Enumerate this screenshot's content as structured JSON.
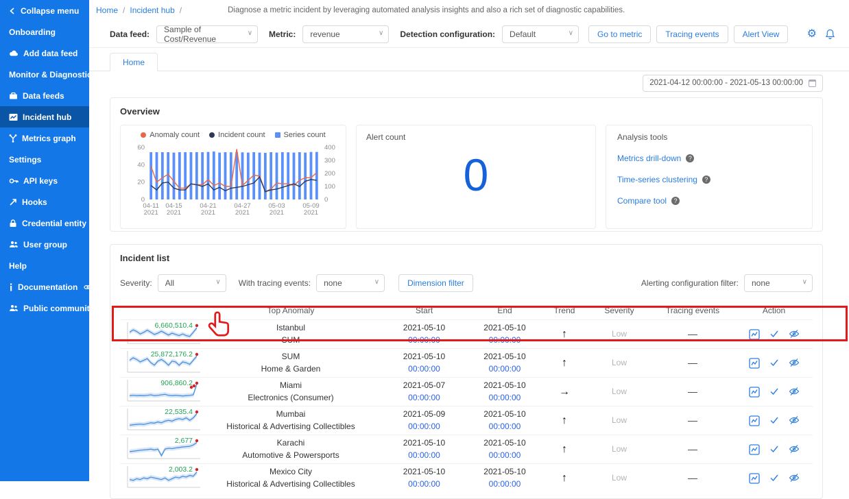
{
  "colors": {
    "sidebar": "#1377e8",
    "sidebar_selected": "#0a55a5",
    "accent": "#2a7de1",
    "bar_series": "#5b8ff9",
    "anomaly_line": "#e8684a",
    "incident_line": "#2b3a55",
    "spark_line": "#4a90d9",
    "spark_band": "#d9e6f8",
    "value_green": "#21a352",
    "anomaly_dot": "#e01f1f",
    "alert_number_blue": "#1561d9",
    "highlight_red": "#e31a1a"
  },
  "sidebar": {
    "collapse_label": "Collapse menu",
    "groups": [
      {
        "label": "Onboarding",
        "items": [
          {
            "icon": "cloud-upload",
            "label": "Add data feed"
          }
        ]
      },
      {
        "label": "Monitor & Diagnostic",
        "items": [
          {
            "icon": "database",
            "label": "Data feeds"
          },
          {
            "icon": "picture-chart",
            "label": "Incident hub",
            "selected": true
          },
          {
            "icon": "branch",
            "label": "Metrics graph"
          }
        ]
      },
      {
        "label": "Settings",
        "items": [
          {
            "icon": "key",
            "label": "API keys"
          },
          {
            "icon": "hook-arrow",
            "label": "Hooks"
          },
          {
            "icon": "lock",
            "label": "Credential entity"
          },
          {
            "icon": "team",
            "label": "User group"
          }
        ]
      },
      {
        "label": "Help",
        "items": [
          {
            "icon": "info",
            "label": "Documentation",
            "external": true
          },
          {
            "icon": "team",
            "label": "Public community",
            "external": true
          }
        ]
      }
    ]
  },
  "breadcrumb": {
    "home": "Home",
    "current": "Incident hub",
    "description": "Diagnose a metric incident by leveraging automated analysis insights and also a rich set of diagnostic capabilities."
  },
  "toolbar": {
    "data_feed_label": "Data feed:",
    "data_feed_value": "Sample of Cost/Revenue",
    "metric_label": "Metric:",
    "metric_value": "revenue",
    "detection_label": "Detection configuration:",
    "detection_value": "Default",
    "go_to_metric": "Go to metric",
    "tracing_events": "Tracing events",
    "alert_view": "Alert View"
  },
  "tabs": {
    "active": "Home"
  },
  "date_range": "2021-04-12 00:00:00 - 2021-05-13 00:00:00",
  "overview": {
    "title": "Overview",
    "alert_count_label": "Alert count",
    "alert_count_value": "0",
    "analysis_tools": {
      "title": "Analysis tools",
      "links": [
        "Metrics drill-down",
        "Time-series clustering",
        "Compare tool"
      ]
    }
  },
  "chart_data": {
    "type": "bar",
    "x": [
      "04-11",
      "04-12",
      "04-13",
      "04-14",
      "04-15",
      "04-16",
      "04-17",
      "04-18",
      "04-19",
      "04-20",
      "04-21",
      "04-22",
      "04-23",
      "04-24",
      "04-25",
      "04-26",
      "04-27",
      "04-28",
      "04-29",
      "04-30",
      "05-01",
      "05-02",
      "05-03",
      "05-04",
      "05-05",
      "05-06",
      "05-07",
      "05-08",
      "05-09",
      "05-10"
    ],
    "series": [
      {
        "name": "Anomaly count",
        "type": "line",
        "axis": "left",
        "color": "#e8684a",
        "values": [
          38,
          20,
          25,
          29,
          21,
          13,
          13,
          18,
          17,
          17,
          23,
          16,
          19,
          15,
          15,
          58,
          16,
          22,
          28,
          27,
          9,
          12,
          19,
          18,
          18,
          16,
          22,
          25,
          25,
          31
        ]
      },
      {
        "name": "Incident count",
        "type": "line",
        "axis": "left",
        "color": "#2b3a55",
        "values": [
          16,
          11,
          19,
          20,
          13,
          11,
          11,
          18,
          17,
          15,
          18,
          11,
          14,
          10,
          13,
          14,
          15,
          17,
          19,
          26,
          9,
          11,
          12,
          14,
          16,
          18,
          15,
          21,
          23,
          22
        ]
      },
      {
        "name": "Series count",
        "type": "bar",
        "axis": "right",
        "color": "#5b8ff9",
        "values": [
          363,
          363,
          363,
          363,
          360,
          363,
          363,
          363,
          363,
          363,
          365,
          368,
          360,
          363,
          362,
          363,
          362,
          360,
          363,
          360,
          358,
          363,
          360,
          363,
          362,
          360,
          363,
          360,
          365,
          365
        ]
      }
    ],
    "left_axis": {
      "ticks": [
        0,
        20,
        40,
        60
      ],
      "max": 60
    },
    "right_axis": {
      "ticks": [
        0,
        100,
        200,
        300,
        400
      ],
      "max": 400
    },
    "x_tick_indices": [
      0,
      4,
      10,
      16,
      22,
      28
    ],
    "x_tick_year": "2021",
    "legend_position": "top",
    "grid": false
  },
  "incident_list": {
    "title": "Incident list",
    "filters": {
      "severity_label": "Severity:",
      "severity_value": "All",
      "tracing_label": "With tracing events:",
      "tracing_value": "none",
      "dimension_filter_button": "Dimension filter",
      "alerting_label": "Alerting configuration filter:",
      "alerting_value": "none"
    },
    "columns": [
      "",
      "Top Anomaly",
      "Start",
      "End",
      "Trend",
      "Severity",
      "Tracing events",
      "Action"
    ],
    "trend_glyphs": {
      "up": "↑",
      "right": "→"
    },
    "rows": [
      {
        "value": "6,660,510.4",
        "anomaly_line1": "Istanbul",
        "anomaly_line2": "SUM",
        "start_date": "2021-05-10",
        "start_time": "00:00:00",
        "end_date": "2021-05-10",
        "end_time": "00:00:00",
        "trend": "up",
        "severity": "Low",
        "tracing": "—",
        "highlighted": true,
        "dots": 1,
        "spark": [
          0.55,
          0.7,
          0.6,
          0.45,
          0.55,
          0.68,
          0.55,
          0.42,
          0.5,
          0.62,
          0.5,
          0.38,
          0.5,
          0.42,
          0.35,
          0.45,
          0.35,
          0.3,
          0.55,
          0.82
        ]
      },
      {
        "value": "25,872,176.2",
        "anomaly_line1": "SUM",
        "anomaly_line2": "Home & Garden",
        "start_date": "2021-05-10",
        "start_time": "00:00:00",
        "end_date": "2021-05-10",
        "end_time": "00:00:00",
        "trend": "up",
        "severity": "Low",
        "tracing": "—",
        "highlighted": false,
        "dots": 1,
        "spark": [
          0.6,
          0.75,
          0.65,
          0.5,
          0.6,
          0.7,
          0.45,
          0.3,
          0.55,
          0.65,
          0.5,
          0.3,
          0.55,
          0.5,
          0.3,
          0.5,
          0.45,
          0.35,
          0.6,
          0.85
        ]
      },
      {
        "value": "906,860.2",
        "anomaly_line1": "Miami",
        "anomaly_line2": "Electronics (Consumer)",
        "start_date": "2021-05-07",
        "start_time": "00:00:00",
        "end_date": "2021-05-10",
        "end_time": "00:00:00",
        "trend": "right",
        "severity": "Low",
        "tracing": "—",
        "highlighted": false,
        "dots": 3,
        "spark": [
          0.2,
          0.22,
          0.2,
          0.21,
          0.2,
          0.22,
          0.25,
          0.2,
          0.22,
          0.25,
          0.28,
          0.22,
          0.2,
          0.22,
          0.2,
          0.18,
          0.2,
          0.22,
          0.25,
          0.9
        ]
      },
      {
        "value": "22,535.4",
        "anomaly_line1": "Mumbai",
        "anomaly_line2": "Historical & Advertising Collectibles",
        "start_date": "2021-05-09",
        "start_time": "00:00:00",
        "end_date": "2021-05-10",
        "end_time": "00:00:00",
        "trend": "up",
        "severity": "Low",
        "tracing": "—",
        "highlighted": false,
        "dots": 1,
        "spark": [
          0.15,
          0.18,
          0.2,
          0.22,
          0.2,
          0.25,
          0.3,
          0.28,
          0.35,
          0.3,
          0.4,
          0.45,
          0.4,
          0.5,
          0.55,
          0.5,
          0.6,
          0.45,
          0.6,
          0.85
        ]
      },
      {
        "value": "2,677",
        "anomaly_line1": "Karachi",
        "anomaly_line2": "Automotive & Powersports",
        "start_date": "2021-05-10",
        "start_time": "00:00:00",
        "end_date": "2021-05-10",
        "end_time": "00:00:00",
        "trend": "up",
        "severity": "Low",
        "tracing": "—",
        "highlighted": false,
        "dots": 1,
        "spark": [
          0.3,
          0.32,
          0.35,
          0.38,
          0.4,
          0.42,
          0.45,
          0.4,
          0.45,
          0.05,
          0.45,
          0.5,
          0.48,
          0.52,
          0.55,
          0.58,
          0.6,
          0.62,
          0.7,
          0.85
        ]
      },
      {
        "value": "2,003.2",
        "anomaly_line1": "Mexico City",
        "anomaly_line2": "Historical & Advertising Collectibles",
        "start_date": "2021-05-10",
        "start_time": "00:00:00",
        "end_date": "2021-05-10",
        "end_time": "00:00:00",
        "trend": "up",
        "severity": "Low",
        "tracing": "—",
        "highlighted": false,
        "dots": 1,
        "spark": [
          0.35,
          0.3,
          0.4,
          0.35,
          0.45,
          0.4,
          0.5,
          0.45,
          0.4,
          0.35,
          0.45,
          0.3,
          0.4,
          0.5,
          0.45,
          0.55,
          0.5,
          0.6,
          0.55,
          0.8
        ]
      }
    ]
  }
}
